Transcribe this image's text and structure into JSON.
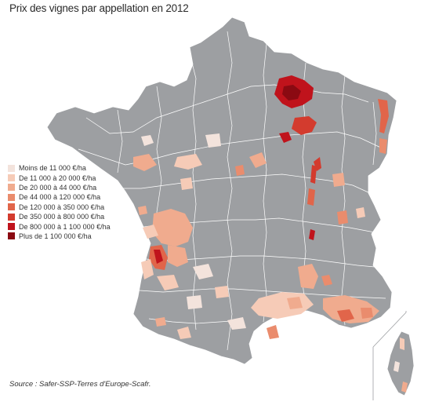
{
  "title": "Prix des vignes par appellation en 2012",
  "legend": [
    {
      "label": "Moins de 11 000 €/ha",
      "color": "#f3e3dc"
    },
    {
      "label": "De 11 000 à 20 000 €/ha",
      "color": "#f6cbb7"
    },
    {
      "label": "De 20 000 à 44 000 €/ha",
      "color": "#f0ab8e"
    },
    {
      "label": "De 44 000 à 120 000 €/ha",
      "color": "#ea8c6d"
    },
    {
      "label": "De 120 000 à 350 000 €/ha",
      "color": "#e1654a"
    },
    {
      "label": "De 350 000 à 800 000 €/ha",
      "color": "#d33b2e"
    },
    {
      "label": "De 800 000 à 1 100 000 €/ha",
      "color": "#c0131c"
    },
    {
      "label": "Plus de 1 100 000 €/ha",
      "color": "#8b0a12"
    }
  ],
  "source": "Source : Safer-SSP-Terres d'Europe-Scafr.",
  "colors": {
    "land": "#9d9fa2",
    "borders": "#ffffff"
  }
}
